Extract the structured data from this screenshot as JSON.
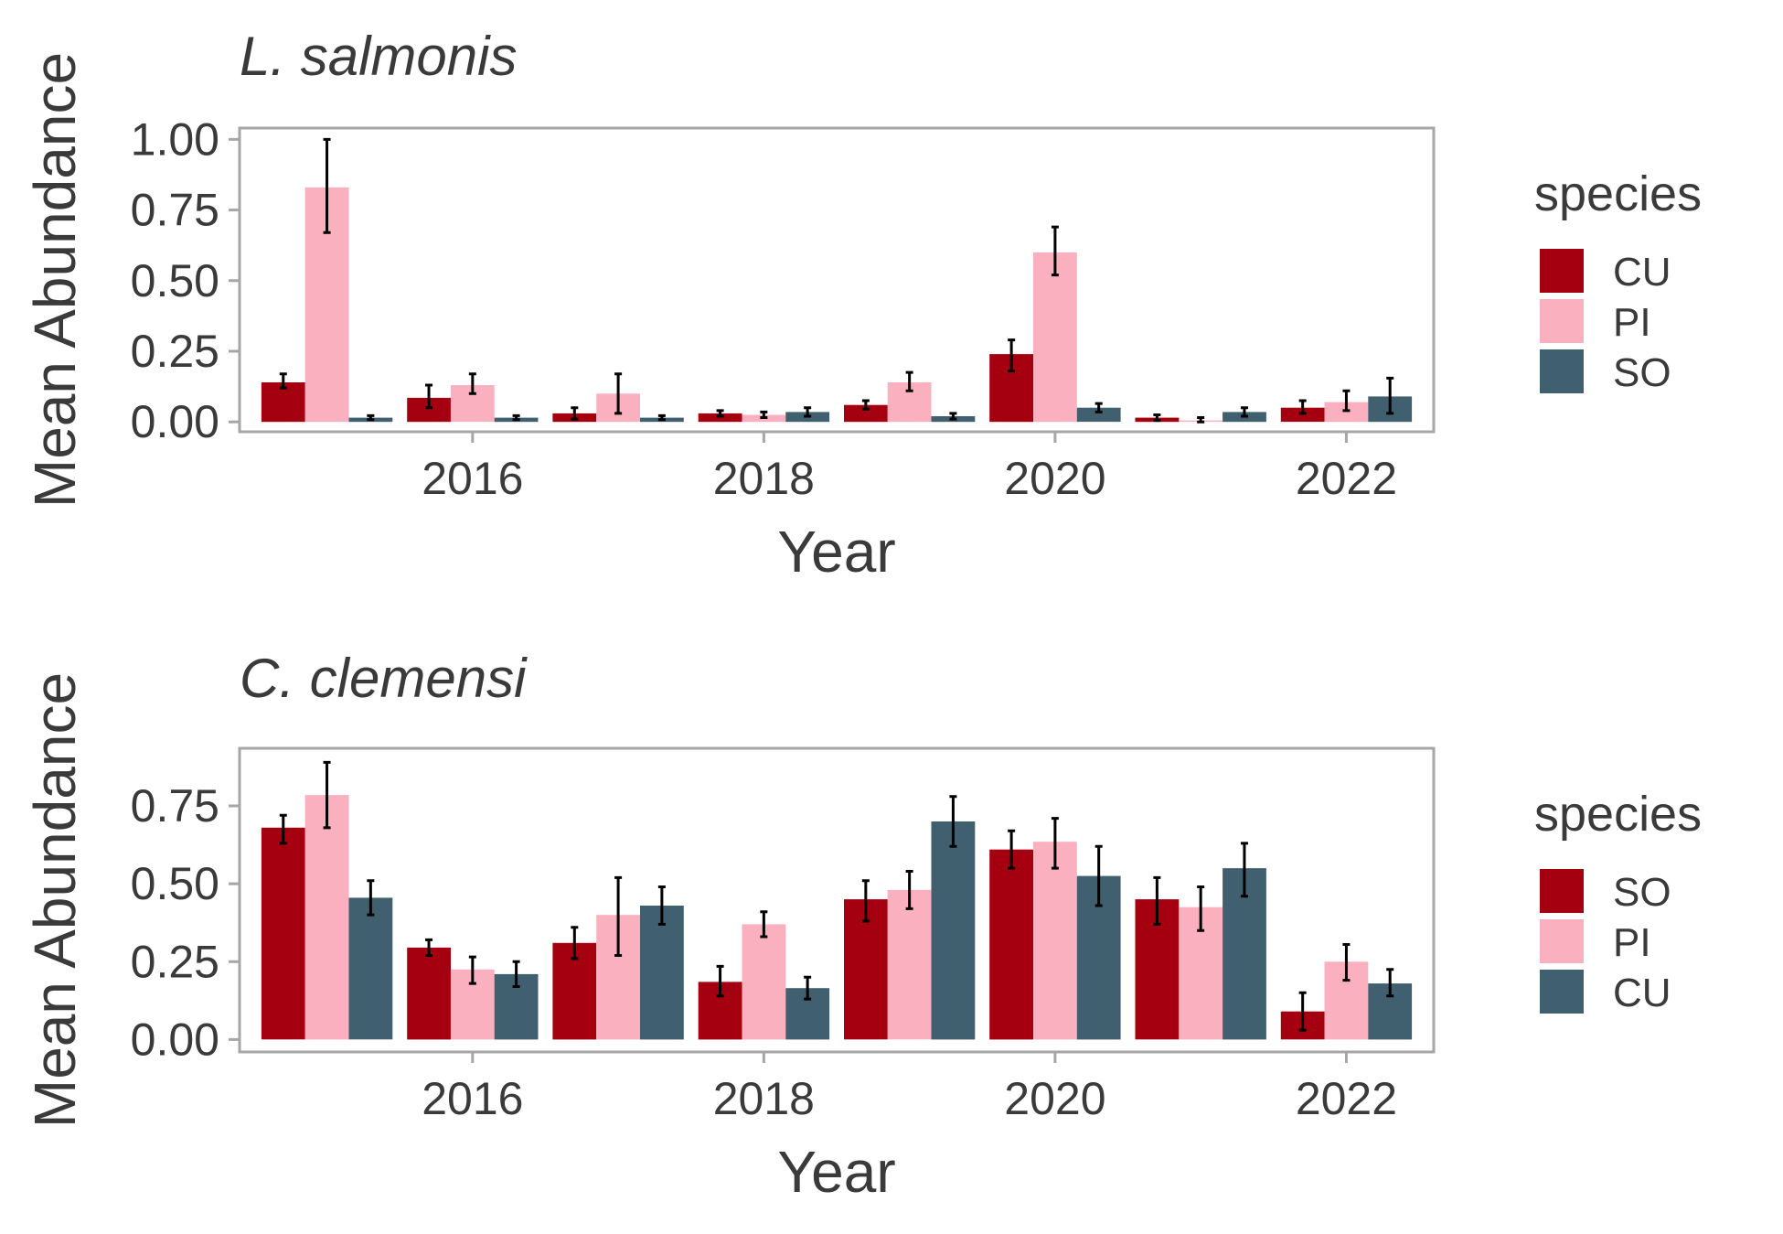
{
  "colors": {
    "dark_red": "#a50010",
    "pink": "#fbb0c0",
    "slate": "#41606f",
    "panel_border": "#a6a6a6",
    "text": "#3a3a3a"
  },
  "chart_data": [
    {
      "type": "bar",
      "title": "L. salmonis",
      "xlabel": "Year",
      "ylabel": "Mean Abundance",
      "x_ticks": [
        "2016",
        "2018",
        "2020",
        "2022"
      ],
      "y_ticks": [
        "0.00",
        "0.25",
        "0.50",
        "0.75",
        "1.00"
      ],
      "categories": [
        2015,
        2016,
        2017,
        2018,
        2019,
        2020,
        2021,
        2022
      ],
      "ylim": [
        -0.035,
        1.04
      ],
      "legend_title": "species",
      "legend_position": "right",
      "grid": false,
      "series": [
        {
          "name": "CU",
          "color": "#a50010",
          "values": [
            0.14,
            0.085,
            0.03,
            0.03,
            0.06,
            0.24,
            0.015,
            0.05
          ],
          "err_low": [
            0.12,
            0.05,
            0.01,
            0.02,
            0.045,
            0.18,
            0.005,
            0.03
          ],
          "err_high": [
            0.17,
            0.13,
            0.05,
            0.04,
            0.075,
            0.29,
            0.025,
            0.075
          ]
        },
        {
          "name": "PI",
          "color": "#fbb0c0",
          "values": [
            0.83,
            0.13,
            0.1,
            0.025,
            0.14,
            0.6,
            0.005,
            0.07
          ],
          "err_low": [
            0.67,
            0.1,
            0.03,
            0.015,
            0.11,
            0.52,
            0.0,
            0.04
          ],
          "err_high": [
            1.0,
            0.17,
            0.17,
            0.035,
            0.175,
            0.69,
            0.015,
            0.11
          ]
        },
        {
          "name": "SO",
          "color": "#41606f",
          "values": [
            0.015,
            0.015,
            0.015,
            0.035,
            0.02,
            0.05,
            0.035,
            0.09
          ],
          "err_low": [
            0.008,
            0.008,
            0.008,
            0.02,
            0.01,
            0.035,
            0.02,
            0.03
          ],
          "err_high": [
            0.022,
            0.022,
            0.022,
            0.05,
            0.03,
            0.065,
            0.05,
            0.155
          ]
        }
      ]
    },
    {
      "type": "bar",
      "title": "C. clemensi",
      "xlabel": "Year",
      "ylabel": "Mean Abundance",
      "x_ticks": [
        "2016",
        "2018",
        "2020",
        "2022"
      ],
      "y_ticks": [
        "0.00",
        "0.25",
        "0.50",
        "0.75"
      ],
      "categories": [
        2015,
        2016,
        2017,
        2018,
        2019,
        2020,
        2021,
        2022
      ],
      "ylim": [
        -0.04,
        0.935
      ],
      "legend_title": "species",
      "legend_position": "right",
      "grid": false,
      "series": [
        {
          "name": "SO",
          "color": "#a50010",
          "values": [
            0.68,
            0.295,
            0.31,
            0.185,
            0.45,
            0.61,
            0.45,
            0.09
          ],
          "err_low": [
            0.63,
            0.27,
            0.26,
            0.14,
            0.38,
            0.55,
            0.37,
            0.03
          ],
          "err_high": [
            0.72,
            0.32,
            0.36,
            0.235,
            0.51,
            0.67,
            0.52,
            0.15
          ]
        },
        {
          "name": "PI",
          "color": "#fbb0c0",
          "values": [
            0.785,
            0.225,
            0.4,
            0.37,
            0.48,
            0.635,
            0.425,
            0.25
          ],
          "err_low": [
            0.68,
            0.18,
            0.27,
            0.33,
            0.42,
            0.55,
            0.35,
            0.19
          ],
          "err_high": [
            0.89,
            0.265,
            0.52,
            0.41,
            0.54,
            0.71,
            0.49,
            0.305
          ]
        },
        {
          "name": "CU",
          "color": "#41606f",
          "values": [
            0.455,
            0.21,
            0.43,
            0.165,
            0.7,
            0.525,
            0.55,
            0.18
          ],
          "err_low": [
            0.4,
            0.17,
            0.37,
            0.13,
            0.62,
            0.43,
            0.46,
            0.14
          ],
          "err_high": [
            0.51,
            0.25,
            0.49,
            0.2,
            0.78,
            0.62,
            0.63,
            0.225
          ]
        }
      ]
    }
  ]
}
